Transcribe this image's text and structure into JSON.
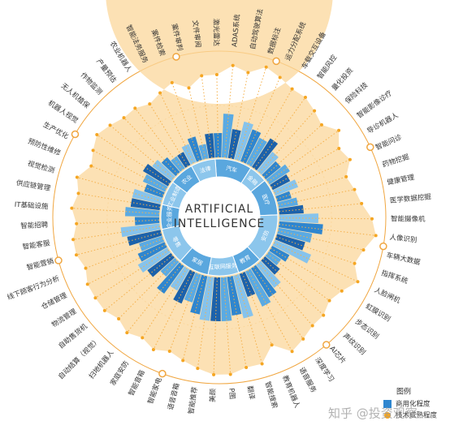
{
  "chart_data": {
    "type": "radial",
    "center_title": [
      "ARTIFICIAL",
      "INTELLIGENCE"
    ],
    "legend_title": "图例",
    "legend": [
      {
        "name": "商用化程度",
        "color": "#2f86cf"
      },
      {
        "name": "技术成熟程度",
        "color": "#f5a623"
      }
    ],
    "watermark": "知乎 @投资观察",
    "sectors": [
      {
        "label": "汽车",
        "items": [
          {
            "label": "激光雷达",
            "commercial": 5,
            "tech": 6
          },
          {
            "label": "ADAS系统",
            "commercial": 9,
            "tech": 8
          },
          {
            "label": "自动驾驶算法",
            "commercial": 6,
            "tech": 7
          },
          {
            "label": "数据标注",
            "commercial": 8,
            "tech": 9
          },
          {
            "label": "运力分配系统",
            "commercial": 7,
            "tech": 8
          },
          {
            "label": "车载交互设备",
            "commercial": 6,
            "tech": 7
          }
        ]
      },
      {
        "label": "金融",
        "items": [
          {
            "label": "智能风控",
            "commercial": 7,
            "tech": 7
          },
          {
            "label": "量化投资",
            "commercial": 5,
            "tech": 6
          },
          {
            "label": "保险科技",
            "commercial": 4,
            "tech": 5
          }
        ]
      },
      {
        "label": "医疗",
        "items": [
          {
            "label": "智能影像诊疗",
            "commercial": 5,
            "tech": 7
          },
          {
            "label": "导诊机器人",
            "commercial": 4,
            "tech": 5
          },
          {
            "label": "智能问诊",
            "commercial": 5,
            "tech": 6
          },
          {
            "label": "药物挖掘",
            "commercial": 3,
            "tech": 4
          },
          {
            "label": "健康管理",
            "commercial": 4,
            "tech": 5
          },
          {
            "label": "医学数据挖掘",
            "commercial": 5,
            "tech": 6
          }
        ]
      },
      {
        "label": "安防",
        "items": [
          {
            "label": "智能摄像机",
            "commercial": 8,
            "tech": 8
          },
          {
            "label": "人像识别",
            "commercial": 9,
            "tech": 9
          },
          {
            "label": "车辆大数据",
            "commercial": 7,
            "tech": 7
          },
          {
            "label": "指挥系统",
            "commercial": 6,
            "tech": 6
          },
          {
            "label": "人脸闸机",
            "commercial": 8,
            "tech": 8
          },
          {
            "label": "虹膜识别",
            "commercial": 4,
            "tech": 6
          },
          {
            "label": "步态识别",
            "commercial": 3,
            "tech": 5
          },
          {
            "label": "声纹识别",
            "commercial": 4,
            "tech": 6
          }
        ]
      },
      {
        "label": "教育",
        "items": [
          {
            "label": "AI芯片",
            "commercial": 6,
            "tech": 6
          },
          {
            "label": "深度学习",
            "commercial": 7,
            "tech": 7
          },
          {
            "label": "语音服务",
            "commercial": 8,
            "tech": 8
          },
          {
            "label": "教育机器人",
            "commercial": 5,
            "tech": 5
          }
        ]
      },
      {
        "label": "互联网服务",
        "items": [
          {
            "label": "智能搜索",
            "commercial": 9,
            "tech": 8
          },
          {
            "label": "翻译",
            "commercial": 8,
            "tech": 8
          },
          {
            "label": "P图",
            "commercial": 9,
            "tech": 9
          },
          {
            "label": "美颜",
            "commercial": 9,
            "tech": 9
          },
          {
            "label": "智能推荐",
            "commercial": 9,
            "tech": 8
          }
        ]
      },
      {
        "label": "家居",
        "items": [
          {
            "label": "语音音箱",
            "commercial": 8,
            "tech": 7
          },
          {
            "label": "智能家电",
            "commercial": 6,
            "tech": 6
          },
          {
            "label": "智能音箱",
            "commercial": 7,
            "tech": 7
          },
          {
            "label": "家庭安防",
            "commercial": 5,
            "tech": 6
          },
          {
            "label": "扫地机器人",
            "commercial": 7,
            "tech": 7
          }
        ]
      },
      {
        "label": "零售",
        "items": [
          {
            "label": "自动结算（视觉）",
            "commercial": 4,
            "tech": 6
          },
          {
            "label": "自助售货机",
            "commercial": 6,
            "tech": 7
          },
          {
            "label": "物流管理",
            "commercial": 7,
            "tech": 7
          },
          {
            "label": "仓储管理",
            "commercial": 6,
            "tech": 7
          },
          {
            "label": "线下顾客行为分析",
            "commercial": 5,
            "tech": 6
          },
          {
            "label": "智能营销",
            "commercial": 7,
            "tech": 7
          }
        ]
      },
      {
        "label": "企业服务",
        "items": [
          {
            "label": "智能客服",
            "commercial": 8,
            "tech": 7
          },
          {
            "label": "智能招聘",
            "commercial": 5,
            "tech": 6
          },
          {
            "label": "IT基础设施",
            "commercial": 7,
            "tech": 7
          },
          {
            "label": "供应链管理",
            "commercial": 6,
            "tech": 6
          }
        ]
      },
      {
        "label": "工业制造",
        "items": [
          {
            "label": "视觉检测",
            "commercial": 6,
            "tech": 7
          },
          {
            "label": "预防性维修",
            "commercial": 4,
            "tech": 5
          },
          {
            "label": "生产优化",
            "commercial": 5,
            "tech": 6
          },
          {
            "label": "机器人视觉",
            "commercial": 6,
            "tech": 7
          }
        ]
      },
      {
        "label": "农业",
        "items": [
          {
            "label": "无人机植保",
            "commercial": 5,
            "tech": 6
          },
          {
            "label": "作物监测",
            "commercial": 4,
            "tech": 5
          },
          {
            "label": "产量预估",
            "commercial": 3,
            "tech": 5
          },
          {
            "label": "农业机器人",
            "commercial": 3,
            "tech": 4
          }
        ]
      },
      {
        "label": "法律",
        "items": [
          {
            "label": "智能法务服务",
            "commercial": 4,
            "tech": 5
          },
          {
            "label": "案件检索",
            "commercial": 5,
            "tech": 6
          },
          {
            "label": "案件审判",
            "commercial": 3,
            "tech": 4
          },
          {
            "label": "文件审阅",
            "commercial": 5,
            "tech": 6
          }
        ]
      }
    ]
  }
}
